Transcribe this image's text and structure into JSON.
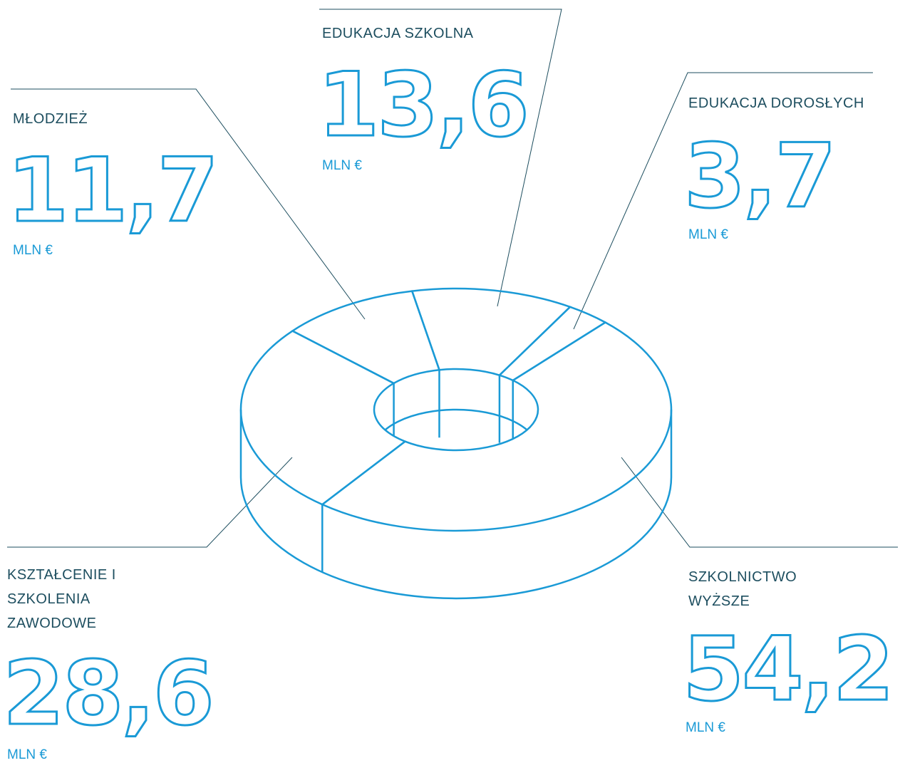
{
  "chart_data": {
    "type": "donut3d",
    "categories": [
      "EDUKACJA SZKOLNA",
      "EDUKACJA DOROSŁYCH",
      "SZKOLNICTWO WYŻSZE",
      "KSZTAŁCENIE I SZKOLENIA ZAWODOWE",
      "MŁODZIEŻ"
    ],
    "values": [
      13.6,
      3.7,
      54.2,
      28.6,
      11.7
    ],
    "value_labels": [
      "13,6",
      "3,7",
      "54,2",
      "28,6",
      "11,7"
    ],
    "unit": "MLN €",
    "color": "#1a9ad6"
  }
}
